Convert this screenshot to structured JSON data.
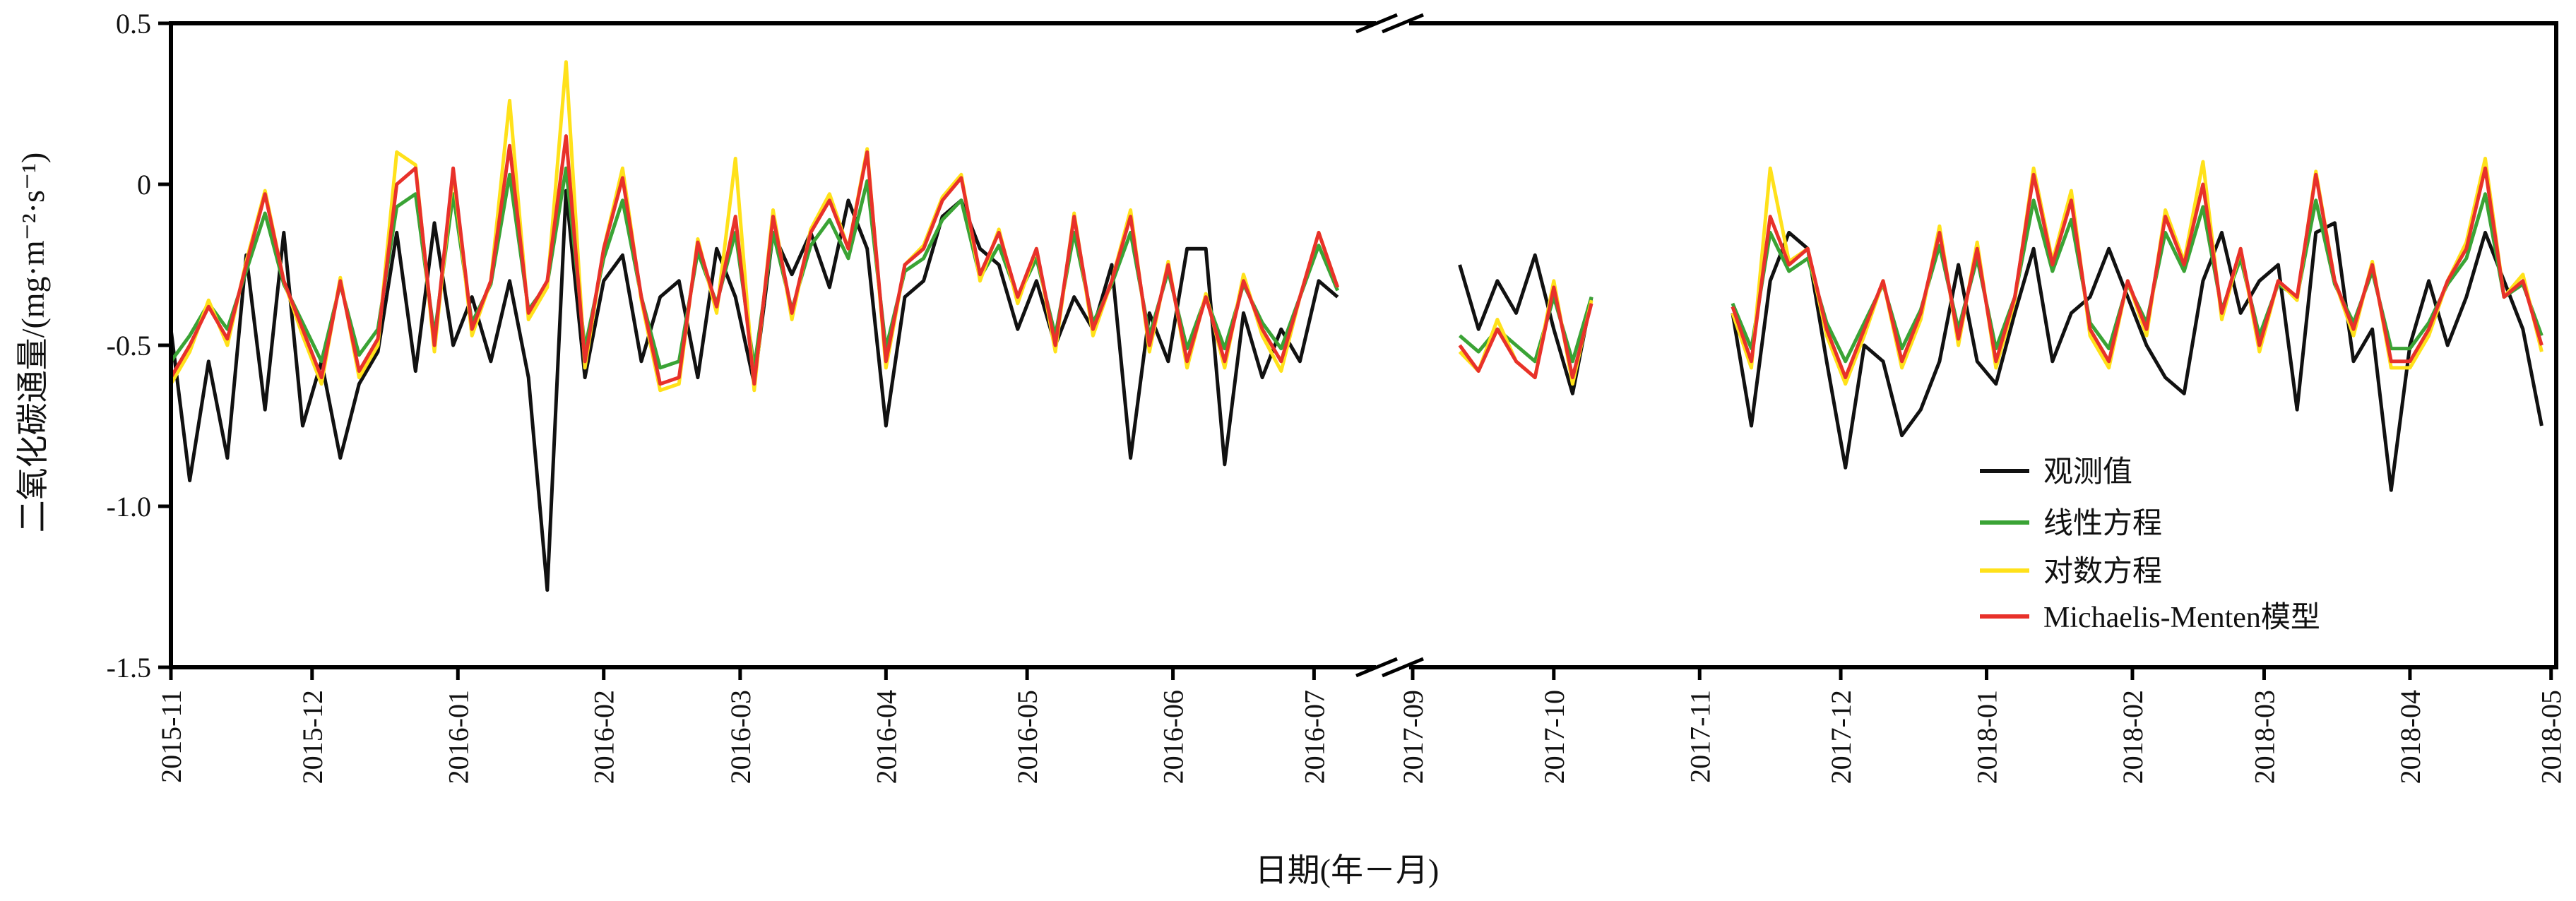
{
  "chart_data": {
    "type": "line",
    "title": "",
    "xlabel": "日期(年－月)",
    "ylabel": "二氧化碳通量/(mg·m⁻²·s⁻¹)",
    "ylim": [
      -1.5,
      0.5
    ],
    "yticks": [
      "0.5",
      "0",
      "-0.5",
      "-1.0",
      "-1.5"
    ],
    "ytick_values": [
      0.5,
      0,
      -0.5,
      -1.0,
      -1.5
    ],
    "xticks": [
      "2015-11",
      "2015-12",
      "2016-01",
      "2016-02",
      "2016-03",
      "2016-04",
      "2016-05",
      "2016-06",
      "2016-07",
      "2017-09",
      "2017-10",
      "2017-11",
      "2017-12",
      "2018-01",
      "2018-02",
      "2018-03",
      "2018-04",
      "2018-05"
    ],
    "axis_break": "between 2016-07 and 2017-09",
    "grid": false,
    "legend_position": "bottom-right",
    "series": [
      {
        "key": "observed",
        "name": "观测值",
        "color": "#111111"
      },
      {
        "key": "linear",
        "name": "线性方程",
        "color": "#3aa335"
      },
      {
        "key": "log",
        "name": "对数方程",
        "color": "#ffe11a"
      },
      {
        "key": "mm",
        "name": "Michaelis-Menten模型",
        "color": "#e8312a"
      }
    ],
    "segments": [
      {
        "start": "2015-11-01",
        "step_days": 4,
        "observed": [
          -0.45,
          -0.92,
          -0.55,
          -0.85,
          -0.22,
          -0.7,
          -0.15,
          -0.75,
          -0.55,
          -0.85,
          -0.62,
          -0.52,
          -0.15,
          -0.58,
          -0.12,
          -0.5,
          -0.35,
          -0.55,
          -0.3,
          -0.6,
          -1.26,
          -0.02,
          -0.6,
          -0.3,
          -0.22,
          -0.55,
          -0.35,
          -0.3,
          -0.6,
          -0.2,
          -0.35,
          -0.62,
          -0.15,
          -0.28,
          -0.15,
          -0.32,
          -0.05,
          -0.2,
          -0.75,
          -0.35,
          -0.3,
          -0.1,
          -0.05,
          -0.2,
          -0.25,
          -0.45,
          -0.3,
          -0.5,
          -0.35,
          -0.45,
          -0.25,
          -0.85,
          -0.4,
          -0.55,
          -0.2,
          -0.2,
          -0.87,
          -0.4,
          -0.6,
          -0.45,
          -0.55,
          -0.3,
          -0.35
        ],
        "linear": [
          -0.55,
          -0.47,
          -0.37,
          -0.45,
          -0.27,
          -0.09,
          -0.31,
          -0.43,
          -0.55,
          -0.31,
          -0.53,
          -0.45,
          -0.07,
          -0.03,
          -0.47,
          -0.03,
          -0.43,
          -0.31,
          0.03,
          -0.39,
          -0.31,
          0.05,
          -0.51,
          -0.23,
          -0.05,
          -0.35,
          -0.57,
          -0.55,
          -0.21,
          -0.37,
          -0.15,
          -0.57,
          -0.15,
          -0.39,
          -0.19,
          -0.11,
          -0.23,
          0.01,
          -0.51,
          -0.27,
          -0.23,
          -0.11,
          -0.05,
          -0.29,
          -0.19,
          -0.35,
          -0.23,
          -0.47,
          -0.15,
          -0.43,
          -0.31,
          -0.15,
          -0.47,
          -0.27,
          -0.51,
          -0.35,
          -0.51,
          -0.31,
          -0.43,
          -0.51,
          -0.35,
          -0.19,
          -0.33
        ],
        "log": [
          -0.62,
          -0.52,
          -0.36,
          -0.5,
          -0.24,
          -0.02,
          -0.3,
          -0.47,
          -0.62,
          -0.29,
          -0.6,
          -0.5,
          0.1,
          0.06,
          -0.52,
          0.04,
          -0.47,
          -0.3,
          0.26,
          -0.42,
          -0.32,
          0.38,
          -0.57,
          -0.2,
          0.05,
          -0.36,
          -0.64,
          -0.62,
          -0.17,
          -0.4,
          0.08,
          -0.64,
          -0.08,
          -0.42,
          -0.14,
          -0.03,
          -0.2,
          0.11,
          -0.57,
          -0.25,
          -0.19,
          -0.04,
          0.03,
          -0.3,
          -0.14,
          -0.37,
          -0.2,
          -0.52,
          -0.09,
          -0.47,
          -0.3,
          -0.08,
          -0.52,
          -0.24,
          -0.57,
          -0.34,
          -0.57,
          -0.28,
          -0.47,
          -0.58,
          -0.35,
          -0.15,
          -0.32
        ],
        "mm": [
          -0.6,
          -0.5,
          -0.38,
          -0.48,
          -0.25,
          -0.03,
          -0.3,
          -0.45,
          -0.6,
          -0.3,
          -0.58,
          -0.48,
          0.0,
          0.05,
          -0.5,
          0.05,
          -0.45,
          -0.3,
          0.12,
          -0.4,
          -0.3,
          0.15,
          -0.55,
          -0.2,
          0.02,
          -0.35,
          -0.62,
          -0.6,
          -0.18,
          -0.38,
          -0.1,
          -0.62,
          -0.1,
          -0.4,
          -0.15,
          -0.05,
          -0.2,
          0.1,
          -0.55,
          -0.25,
          -0.2,
          -0.05,
          0.02,
          -0.28,
          -0.15,
          -0.35,
          -0.2,
          -0.5,
          -0.1,
          -0.45,
          -0.3,
          -0.1,
          -0.5,
          -0.25,
          -0.55,
          -0.35,
          -0.55,
          -0.3,
          -0.45,
          -0.55,
          -0.35,
          -0.15,
          -0.32
        ]
      },
      {
        "start": "2017-09-11",
        "step_days": 4,
        "observed": [
          -0.25,
          -0.45,
          -0.3,
          -0.4,
          -0.22,
          -0.45,
          -0.65,
          -0.35
        ],
        "linear": [
          -0.47,
          -0.52,
          -0.45,
          -0.5,
          -0.55,
          -0.35,
          -0.55,
          -0.35
        ],
        "log": [
          -0.52,
          -0.58,
          -0.42,
          -0.55,
          -0.6,
          -0.3,
          -0.62,
          -0.36
        ],
        "mm": [
          -0.5,
          -0.58,
          -0.45,
          -0.55,
          -0.6,
          -0.32,
          -0.6,
          -0.37
        ]
      },
      {
        "start": "2017-11-08",
        "step_days": 4,
        "observed": [
          -0.4,
          -0.75,
          -0.3,
          -0.15,
          -0.2,
          -0.55,
          -0.88,
          -0.5,
          -0.55,
          -0.78,
          -0.7,
          -0.55,
          -0.25,
          -0.55,
          -0.62,
          -0.4,
          -0.2,
          -0.55,
          -0.4,
          -0.35,
          -0.2,
          -0.35,
          -0.5,
          -0.6,
          -0.65,
          -0.3,
          -0.15,
          -0.4,
          -0.3,
          -0.25,
          -0.7,
          -0.15,
          -0.12,
          -0.55,
          -0.45,
          -0.95,
          -0.5,
          -0.3,
          -0.5,
          -0.35,
          -0.15,
          -0.3,
          -0.45,
          -0.75
        ],
        "linear": [
          -0.37,
          -0.51,
          -0.15,
          -0.27,
          -0.23,
          -0.43,
          -0.55,
          -0.43,
          -0.31,
          -0.51,
          -0.39,
          -0.19,
          -0.45,
          -0.23,
          -0.51,
          -0.35,
          -0.05,
          -0.27,
          -0.11,
          -0.43,
          -0.51,
          -0.31,
          -0.43,
          -0.15,
          -0.27,
          -0.07,
          -0.39,
          -0.23,
          -0.47,
          -0.31,
          -0.35,
          -0.05,
          -0.31,
          -0.43,
          -0.27,
          -0.51,
          -0.51,
          -0.43,
          -0.31,
          -0.23,
          -0.03,
          -0.35,
          -0.31,
          -0.47
        ],
        "log": [
          -0.4,
          -0.57,
          0.05,
          -0.24,
          -0.2,
          -0.47,
          -0.62,
          -0.47,
          -0.3,
          -0.57,
          -0.42,
          -0.13,
          -0.5,
          -0.18,
          -0.57,
          -0.36,
          0.05,
          -0.24,
          -0.02,
          -0.47,
          -0.57,
          -0.3,
          -0.47,
          -0.08,
          -0.24,
          0.07,
          -0.42,
          -0.2,
          -0.52,
          -0.3,
          -0.36,
          0.04,
          -0.3,
          -0.47,
          -0.24,
          -0.57,
          -0.57,
          -0.47,
          -0.3,
          -0.18,
          0.08,
          -0.35,
          -0.28,
          -0.52
        ],
        "mm": [
          -0.38,
          -0.55,
          -0.1,
          -0.25,
          -0.2,
          -0.45,
          -0.6,
          -0.45,
          -0.3,
          -0.55,
          -0.4,
          -0.15,
          -0.48,
          -0.2,
          -0.55,
          -0.35,
          0.03,
          -0.25,
          -0.05,
          -0.45,
          -0.55,
          -0.3,
          -0.45,
          -0.1,
          -0.25,
          0.0,
          -0.4,
          -0.2,
          -0.5,
          -0.3,
          -0.35,
          0.03,
          -0.3,
          -0.45,
          -0.25,
          -0.55,
          -0.55,
          -0.45,
          -0.3,
          -0.2,
          0.05,
          -0.35,
          -0.3,
          -0.5
        ]
      }
    ]
  }
}
